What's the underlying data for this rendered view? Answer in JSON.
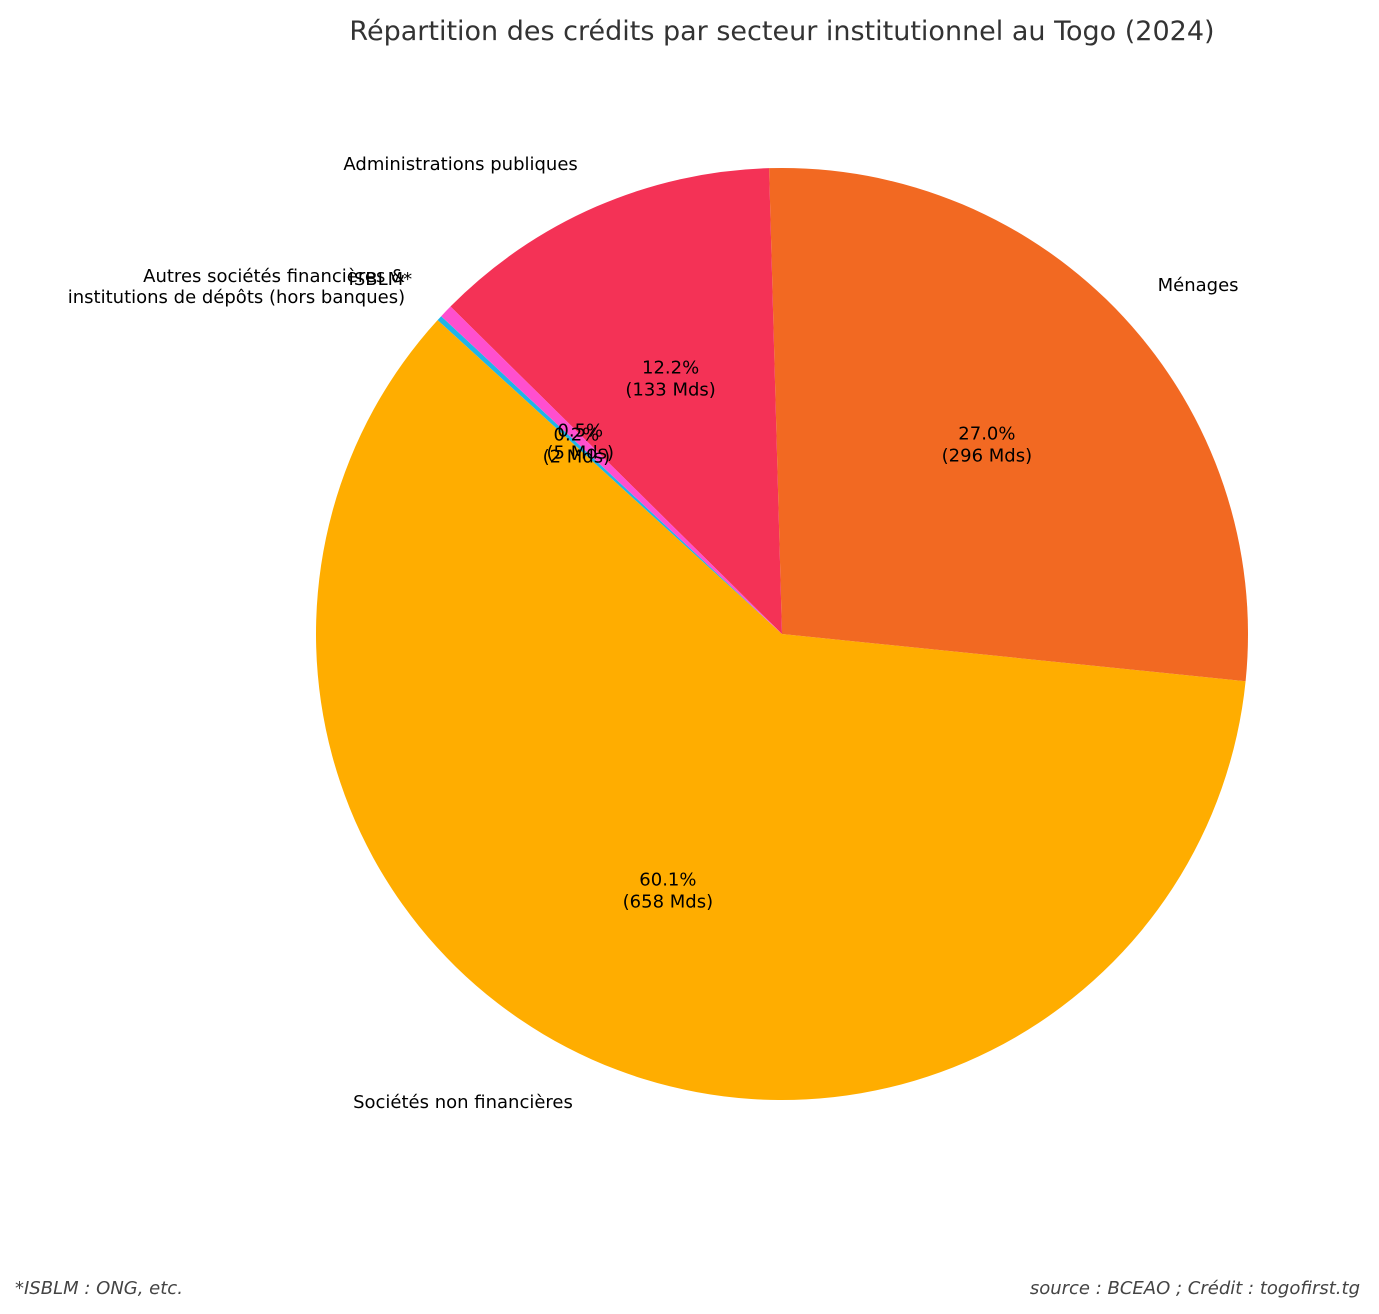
{
  "chart_data": {
    "type": "pie",
    "title": "Répartition des crédits par secteur institutionnel au Togo (2024)",
    "unit": "Mds",
    "start_angle_deg": 137,
    "direction": "counterclockwise",
    "slices": [
      {
        "key": "autres",
        "label_lines": [
          "Autres sociétés financières &",
          "institutions de dépôts (hors banques)"
        ],
        "value": 2,
        "percent_label": "0.2%",
        "value_label": "(2 Mds)",
        "color": "#1fb5e8"
      },
      {
        "key": "snf",
        "label_lines": [
          "Sociétés non financières"
        ],
        "value": 658,
        "percent_label": "60.1%",
        "value_label": "(658 Mds)",
        "color": "#ffad00"
      },
      {
        "key": "menages",
        "label_lines": [
          "Ménages"
        ],
        "value": 296,
        "percent_label": "27.0%",
        "value_label": "(296 Mds)",
        "color": "#f26922"
      },
      {
        "key": "apu",
        "label_lines": [
          "Administrations publiques"
        ],
        "value": 133,
        "percent_label": "12.2%",
        "value_label": "(133 Mds)",
        "color": "#f43256"
      },
      {
        "key": "isblm",
        "label_lines": [
          "ISBLM*"
        ],
        "value": 5,
        "percent_label": "0.5%",
        "value_label": "(5 Mds)",
        "color": "#ff4fcf"
      }
    ]
  },
  "footnotes": {
    "left": "*ISBLM : ONG, etc.",
    "right": "source : BCEAO ; Crédit : togofirst.tg"
  }
}
